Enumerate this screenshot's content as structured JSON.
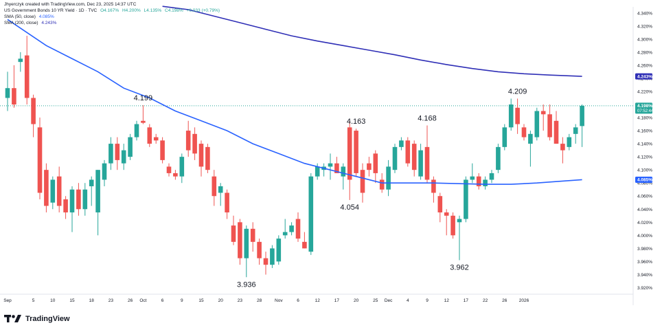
{
  "header": {
    "author_line": "Jhyerczyk created with TradingView.com, Dec 23, 2025 14:37 UTC",
    "symbol": "US Government Bonds 10 YR Yield · 1D · TVC",
    "ohlc": {
      "open": "O4.167%",
      "high": "H4.200%",
      "low": "L4.135%",
      "close": "C4.198%",
      "change": "+0.033 (+0.79%)"
    },
    "sma50_label": "SMA (50, close)",
    "sma50_value": "4.085%",
    "sma200_label": "SMA (200, close)",
    "sma200_value": "4.243%"
  },
  "footer": {
    "brand": "TradingView"
  },
  "colors": {
    "up": "#26a69a",
    "down": "#ef5350",
    "sma50": "#2962ff",
    "sma200": "#2f2fb6",
    "last_price": "#26a69a"
  },
  "chart_data": {
    "type": "candlestick",
    "ylim": [
      3.91,
      4.345
    ],
    "yticks": [
      "3.920%",
      "3.940%",
      "3.960%",
      "3.980%",
      "4.000%",
      "4.020%",
      "4.040%",
      "4.060%",
      "4.080%",
      "4.100%",
      "4.120%",
      "4.140%",
      "4.160%",
      "4.180%",
      "4.200%",
      "4.220%",
      "4.240%",
      "4.260%",
      "4.280%",
      "4.300%",
      "4.320%",
      "4.340%"
    ],
    "xticks": [
      {
        "i": 0,
        "label": "Sep"
      },
      {
        "i": 4,
        "label": "5"
      },
      {
        "i": 7,
        "label": "10"
      },
      {
        "i": 10,
        "label": "15"
      },
      {
        "i": 13,
        "label": "18"
      },
      {
        "i": 16,
        "label": "23"
      },
      {
        "i": 19,
        "label": "26"
      },
      {
        "i": 21,
        "label": "Oct"
      },
      {
        "i": 24,
        "label": "6"
      },
      {
        "i": 27,
        "label": "9"
      },
      {
        "i": 30,
        "label": "15"
      },
      {
        "i": 33,
        "label": "20"
      },
      {
        "i": 36,
        "label": "23"
      },
      {
        "i": 39,
        "label": "28"
      },
      {
        "i": 42,
        "label": "Nov"
      },
      {
        "i": 45,
        "label": "6"
      },
      {
        "i": 48,
        "label": "12"
      },
      {
        "i": 51,
        "label": "17"
      },
      {
        "i": 54,
        "label": "20"
      },
      {
        "i": 57,
        "label": "25"
      },
      {
        "i": 59,
        "label": "Dec"
      },
      {
        "i": 62,
        "label": "4"
      },
      {
        "i": 65,
        "label": "9"
      },
      {
        "i": 68,
        "label": "12"
      },
      {
        "i": 71,
        "label": "17"
      },
      {
        "i": 74,
        "label": "22"
      },
      {
        "i": 77,
        "label": "26"
      },
      {
        "i": 80,
        "label": "2026"
      }
    ],
    "candles": [
      {
        "o": 4.21,
        "h": 4.25,
        "l": 4.19,
        "c": 4.225
      },
      {
        "o": 4.225,
        "h": 4.26,
        "l": 4.195,
        "c": 4.2
      },
      {
        "o": 4.265,
        "h": 4.28,
        "l": 4.25,
        "c": 4.27
      },
      {
        "o": 4.275,
        "h": 4.305,
        "l": 4.2,
        "c": 4.21
      },
      {
        "o": 4.21,
        "h": 4.215,
        "l": 4.15,
        "c": 4.17
      },
      {
        "o": 4.165,
        "h": 4.18,
        "l": 4.055,
        "c": 4.065
      },
      {
        "o": 4.1,
        "h": 4.11,
        "l": 4.035,
        "c": 4.045
      },
      {
        "o": 4.05,
        "h": 4.09,
        "l": 4.04,
        "c": 4.085
      },
      {
        "o": 4.09,
        "h": 4.105,
        "l": 4.035,
        "c": 4.045
      },
      {
        "o": 4.055,
        "h": 4.06,
        "l": 4.025,
        "c": 4.035
      },
      {
        "o": 4.035,
        "h": 4.075,
        "l": 4.005,
        "c": 4.07
      },
      {
        "o": 4.07,
        "h": 4.08,
        "l": 4.03,
        "c": 4.04
      },
      {
        "o": 4.04,
        "h": 4.08,
        "l": 4.03,
        "c": 4.07
      },
      {
        "o": 4.075,
        "h": 4.09,
        "l": 4.045,
        "c": 4.085
      },
      {
        "o": 4.035,
        "h": 4.1,
        "l": 4.0,
        "c": 4.1
      },
      {
        "o": 4.085,
        "h": 4.115,
        "l": 4.075,
        "c": 4.11
      },
      {
        "o": 4.11,
        "h": 4.15,
        "l": 4.1,
        "c": 4.14
      },
      {
        "o": 4.14,
        "h": 4.15,
        "l": 4.1,
        "c": 4.115
      },
      {
        "o": 4.11,
        "h": 4.14,
        "l": 4.1,
        "c": 4.13
      },
      {
        "o": 4.12,
        "h": 4.155,
        "l": 4.115,
        "c": 4.15
      },
      {
        "o": 4.15,
        "h": 4.175,
        "l": 4.145,
        "c": 4.17
      },
      {
        "o": 4.175,
        "h": 4.199,
        "l": 4.17,
        "c": 4.172
      },
      {
        "o": 4.165,
        "h": 4.17,
        "l": 4.135,
        "c": 4.14
      },
      {
        "o": 4.15,
        "h": 4.155,
        "l": 4.14,
        "c": 4.145
      },
      {
        "o": 4.145,
        "h": 4.15,
        "l": 4.11,
        "c": 4.115
      },
      {
        "o": 4.105,
        "h": 4.11,
        "l": 4.09,
        "c": 4.095
      },
      {
        "o": 4.095,
        "h": 4.1,
        "l": 4.085,
        "c": 4.09
      },
      {
        "o": 4.09,
        "h": 4.125,
        "l": 4.08,
        "c": 4.12
      },
      {
        "o": 4.16,
        "h": 4.175,
        "l": 4.12,
        "c": 4.13
      },
      {
        "o": 4.155,
        "h": 4.165,
        "l": 4.115,
        "c": 4.125
      },
      {
        "o": 4.14,
        "h": 4.145,
        "l": 4.09,
        "c": 4.105
      },
      {
        "o": 4.135,
        "h": 4.14,
        "l": 4.095,
        "c": 4.1
      },
      {
        "o": 4.09,
        "h": 4.1,
        "l": 4.045,
        "c": 4.06
      },
      {
        "o": 4.065,
        "h": 4.08,
        "l": 4.045,
        "c": 4.075
      },
      {
        "o": 4.065,
        "h": 4.07,
        "l": 4.025,
        "c": 4.035
      },
      {
        "o": 4.015,
        "h": 4.03,
        "l": 3.985,
        "c": 3.99
      },
      {
        "o": 4.02,
        "h": 4.025,
        "l": 3.955,
        "c": 3.965
      },
      {
        "o": 3.965,
        "h": 4.015,
        "l": 3.936,
        "c": 4.01
      },
      {
        "o": 4.01,
        "h": 4.02,
        "l": 3.975,
        "c": 3.99
      },
      {
        "o": 3.99,
        "h": 3.995,
        "l": 3.955,
        "c": 3.965
      },
      {
        "o": 3.965,
        "h": 3.975,
        "l": 3.94,
        "c": 3.955
      },
      {
        "o": 3.955,
        "h": 3.985,
        "l": 3.95,
        "c": 3.98
      },
      {
        "o": 3.96,
        "h": 4.0,
        "l": 3.955,
        "c": 3.995
      },
      {
        "o": 4.0,
        "h": 4.025,
        "l": 3.995,
        "c": 4.005
      },
      {
        "o": 4.005,
        "h": 4.02,
        "l": 4.0,
        "c": 4.015
      },
      {
        "o": 4.025,
        "h": 4.035,
        "l": 3.99,
        "c": 3.995
      },
      {
        "o": 3.99,
        "h": 4.005,
        "l": 3.98,
        "c": 3.98
      },
      {
        "o": 3.975,
        "h": 4.095,
        "l": 3.97,
        "c": 4.09
      },
      {
        "o": 4.09,
        "h": 4.11,
        "l": 4.085,
        "c": 4.105
      },
      {
        "o": 4.1,
        "h": 4.11,
        "l": 4.09,
        "c": 4.105
      },
      {
        "o": 4.105,
        "h": 4.125,
        "l": 4.085,
        "c": 4.11
      },
      {
        "o": 4.11,
        "h": 4.12,
        "l": 4.095,
        "c": 4.095
      },
      {
        "o": 4.09,
        "h": 4.11,
        "l": 4.07,
        "c": 4.105
      },
      {
        "o": 4.165,
        "h": 4.175,
        "l": 4.054,
        "c": 4.085
      },
      {
        "o": 4.16,
        "h": 4.163,
        "l": 4.09,
        "c": 4.095
      },
      {
        "o": 4.1,
        "h": 4.11,
        "l": 4.05,
        "c": 4.065
      },
      {
        "o": 4.11,
        "h": 4.12,
        "l": 4.09,
        "c": 4.1
      },
      {
        "o": 4.125,
        "h": 4.13,
        "l": 4.08,
        "c": 4.095
      },
      {
        "o": 4.085,
        "h": 4.095,
        "l": 4.065,
        "c": 4.07
      },
      {
        "o": 4.07,
        "h": 4.115,
        "l": 4.06,
        "c": 4.105
      },
      {
        "o": 4.1,
        "h": 4.14,
        "l": 4.095,
        "c": 4.135
      },
      {
        "o": 4.135,
        "h": 4.15,
        "l": 4.13,
        "c": 4.145
      },
      {
        "o": 4.145,
        "h": 4.15,
        "l": 4.105,
        "c": 4.11
      },
      {
        "o": 4.14,
        "h": 4.145,
        "l": 4.09,
        "c": 4.1
      },
      {
        "o": 4.09,
        "h": 4.14,
        "l": 4.085,
        "c": 4.13
      },
      {
        "o": 4.135,
        "h": 4.168,
        "l": 4.08,
        "c": 4.085
      },
      {
        "o": 4.085,
        "h": 4.09,
        "l": 4.05,
        "c": 4.065
      },
      {
        "o": 4.06,
        "h": 4.065,
        "l": 4.02,
        "c": 4.035
      },
      {
        "o": 4.035,
        "h": 4.04,
        "l": 4.0,
        "c": 4.03
      },
      {
        "o": 4.03,
        "h": 4.035,
        "l": 3.995,
        "c": 4.0
      },
      {
        "o": 4.02,
        "h": 4.03,
        "l": 3.962,
        "c": 4.025
      },
      {
        "o": 4.025,
        "h": 4.09,
        "l": 4.02,
        "c": 4.085
      },
      {
        "o": 4.085,
        "h": 4.11,
        "l": 4.08,
        "c": 4.09
      },
      {
        "o": 4.09,
        "h": 4.095,
        "l": 4.07,
        "c": 4.075
      },
      {
        "o": 4.075,
        "h": 4.09,
        "l": 4.07,
        "c": 4.085
      },
      {
        "o": 4.085,
        "h": 4.1,
        "l": 4.08,
        "c": 4.095
      },
      {
        "o": 4.1,
        "h": 4.14,
        "l": 4.095,
        "c": 4.135
      },
      {
        "o": 4.135,
        "h": 4.17,
        "l": 4.13,
        "c": 4.165
      },
      {
        "o": 4.165,
        "h": 4.209,
        "l": 4.16,
        "c": 4.2
      },
      {
        "o": 4.195,
        "h": 4.209,
        "l": 4.155,
        "c": 4.17
      },
      {
        "o": 4.165,
        "h": 4.17,
        "l": 4.145,
        "c": 4.15
      },
      {
        "o": 4.14,
        "h": 4.16,
        "l": 4.105,
        "c": 4.155
      },
      {
        "o": 4.15,
        "h": 4.195,
        "l": 4.145,
        "c": 4.19
      },
      {
        "o": 4.19,
        "h": 4.2,
        "l": 4.16,
        "c": 4.185
      },
      {
        "o": 4.185,
        "h": 4.2,
        "l": 4.145,
        "c": 4.15
      },
      {
        "o": 4.175,
        "h": 4.19,
        "l": 4.14,
        "c": 4.14
      },
      {
        "o": 4.14,
        "h": 4.15,
        "l": 4.11,
        "c": 4.13
      },
      {
        "o": 4.135,
        "h": 4.155,
        "l": 4.13,
        "c": 4.15
      },
      {
        "o": 4.155,
        "h": 4.17,
        "l": 4.14,
        "c": 4.165
      },
      {
        "o": 4.167,
        "h": 4.2,
        "l": 4.135,
        "c": 4.198
      }
    ],
    "sma50": [
      {
        "i": 0,
        "v": 4.33
      },
      {
        "i": 3,
        "v": 4.31
      },
      {
        "i": 6,
        "v": 4.29
      },
      {
        "i": 10,
        "v": 4.27
      },
      {
        "i": 14,
        "v": 4.25
      },
      {
        "i": 18,
        "v": 4.225
      },
      {
        "i": 22,
        "v": 4.21
      },
      {
        "i": 26,
        "v": 4.19
      },
      {
        "i": 30,
        "v": 4.175
      },
      {
        "i": 34,
        "v": 4.16
      },
      {
        "i": 38,
        "v": 4.14
      },
      {
        "i": 42,
        "v": 4.125
      },
      {
        "i": 46,
        "v": 4.11
      },
      {
        "i": 50,
        "v": 4.1
      },
      {
        "i": 54,
        "v": 4.09
      },
      {
        "i": 58,
        "v": 4.08
      },
      {
        "i": 62,
        "v": 4.08
      },
      {
        "i": 66,
        "v": 4.08
      },
      {
        "i": 70,
        "v": 4.079
      },
      {
        "i": 74,
        "v": 4.078
      },
      {
        "i": 78,
        "v": 4.078
      },
      {
        "i": 82,
        "v": 4.08
      },
      {
        "i": 86,
        "v": 4.083
      },
      {
        "i": 89,
        "v": 4.085
      }
    ],
    "sma200": [
      {
        "i": 24,
        "v": 4.35
      },
      {
        "i": 28,
        "v": 4.345
      },
      {
        "i": 32,
        "v": 4.335
      },
      {
        "i": 36,
        "v": 4.325
      },
      {
        "i": 40,
        "v": 4.315
      },
      {
        "i": 44,
        "v": 4.305
      },
      {
        "i": 48,
        "v": 4.297
      },
      {
        "i": 52,
        "v": 4.29
      },
      {
        "i": 56,
        "v": 4.283
      },
      {
        "i": 60,
        "v": 4.276
      },
      {
        "i": 64,
        "v": 4.268
      },
      {
        "i": 68,
        "v": 4.261
      },
      {
        "i": 72,
        "v": 4.255
      },
      {
        "i": 76,
        "v": 4.25
      },
      {
        "i": 80,
        "v": 4.247
      },
      {
        "i": 84,
        "v": 4.245
      },
      {
        "i": 89,
        "v": 4.243
      }
    ],
    "annotations": [
      {
        "i": 21,
        "value": 4.199,
        "label": "4.199",
        "pos": "above"
      },
      {
        "i": 37,
        "value": 3.936,
        "label": "3.936",
        "pos": "below"
      },
      {
        "i": 53,
        "value": 4.054,
        "label": "4.054",
        "pos": "below"
      },
      {
        "i": 54,
        "value": 4.163,
        "label": "4.163",
        "pos": "above"
      },
      {
        "i": 65,
        "value": 4.168,
        "label": "4.168",
        "pos": "above"
      },
      {
        "i": 70,
        "value": 3.962,
        "label": "3.962",
        "pos": "below"
      },
      {
        "i": 79,
        "value": 4.209,
        "label": "4.209",
        "pos": "above"
      }
    ],
    "price_tags": {
      "sma200": "4.243%",
      "last_price": "4.198%",
      "countdown": "07:52:44",
      "sma50": "4.085%"
    },
    "last_value": 4.198
  }
}
